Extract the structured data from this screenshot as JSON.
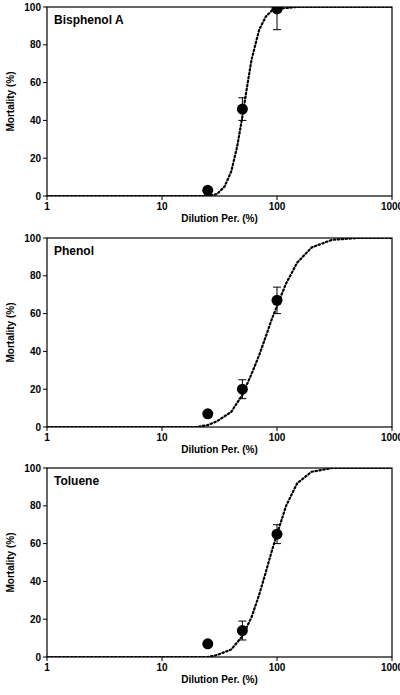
{
  "chart_data": [
    {
      "type": "scatter",
      "title": "Bisphenol A",
      "x_label": "Dilution Per. (%)",
      "y_label": "Mortality (%)",
      "log": "x",
      "xlim": [
        1,
        1000
      ],
      "xticks": [
        1,
        10,
        100,
        1000
      ],
      "ylim": [
        0,
        100
      ],
      "yticks": [
        0,
        20,
        40,
        60,
        80,
        100
      ],
      "series": [
        {
          "type": "scatter",
          "marker": "circle",
          "color": "#000000",
          "x": [
            25,
            50,
            100
          ],
          "values": [
            3,
            46,
            99
          ],
          "errors": [
            0.5,
            6,
            11
          ]
        },
        {
          "type": "line",
          "line_style": "dotted",
          "color": "#000000",
          "x": [
            1,
            10,
            20,
            25,
            30,
            35,
            40,
            45,
            50,
            55,
            60,
            70,
            80,
            90,
            100,
            150,
            200,
            500,
            1000
          ],
          "values": [
            0,
            0,
            0,
            0,
            1,
            5,
            13,
            26,
            42,
            58,
            72,
            88,
            95,
            98,
            99,
            100,
            100,
            100,
            100
          ]
        }
      ]
    },
    {
      "type": "scatter",
      "title": "Phenol",
      "x_label": "Dilution Per. (%)",
      "y_label": "Mortality (%)",
      "log": "x",
      "xlim": [
        1,
        1000
      ],
      "xticks": [
        1,
        10,
        100,
        1000
      ],
      "ylim": [
        0,
        100
      ],
      "yticks": [
        0,
        20,
        40,
        60,
        80,
        100
      ],
      "series": [
        {
          "type": "scatter",
          "marker": "circle",
          "color": "#000000",
          "x": [
            25,
            50,
            100
          ],
          "values": [
            7,
            20,
            67
          ],
          "errors": [
            1,
            5,
            7
          ]
        },
        {
          "type": "line",
          "line_style": "dotted",
          "color": "#000000",
          "x": [
            1,
            10,
            20,
            25,
            30,
            40,
            50,
            60,
            70,
            80,
            90,
            100,
            120,
            150,
            200,
            300,
            500,
            1000
          ],
          "values": [
            0,
            0,
            0,
            1,
            3,
            8,
            17,
            28,
            38,
            48,
            57,
            64,
            76,
            87,
            95,
            99,
            100,
            100
          ]
        }
      ]
    },
    {
      "type": "scatter",
      "title": "Toluene",
      "x_label": "Dilution Per. (%)",
      "y_label": "Mortality (%)",
      "log": "x",
      "xlim": [
        1,
        1000
      ],
      "xticks": [
        1,
        10,
        100,
        1000
      ],
      "ylim": [
        0,
        100
      ],
      "yticks": [
        0,
        20,
        40,
        60,
        80,
        100
      ],
      "series": [
        {
          "type": "scatter",
          "marker": "circle",
          "color": "#000000",
          "x": [
            25,
            50,
            100
          ],
          "values": [
            7,
            14,
            65
          ],
          "errors": [
            1,
            5,
            5
          ]
        },
        {
          "type": "line",
          "line_style": "dotted",
          "color": "#000000",
          "x": [
            1,
            10,
            20,
            25,
            30,
            40,
            50,
            60,
            70,
            80,
            90,
            100,
            120,
            150,
            200,
            300,
            500,
            1000
          ],
          "values": [
            0,
            0,
            0,
            0,
            1,
            4,
            11,
            21,
            33,
            45,
            56,
            65,
            80,
            92,
            98,
            100,
            100,
            100
          ]
        }
      ]
    }
  ]
}
